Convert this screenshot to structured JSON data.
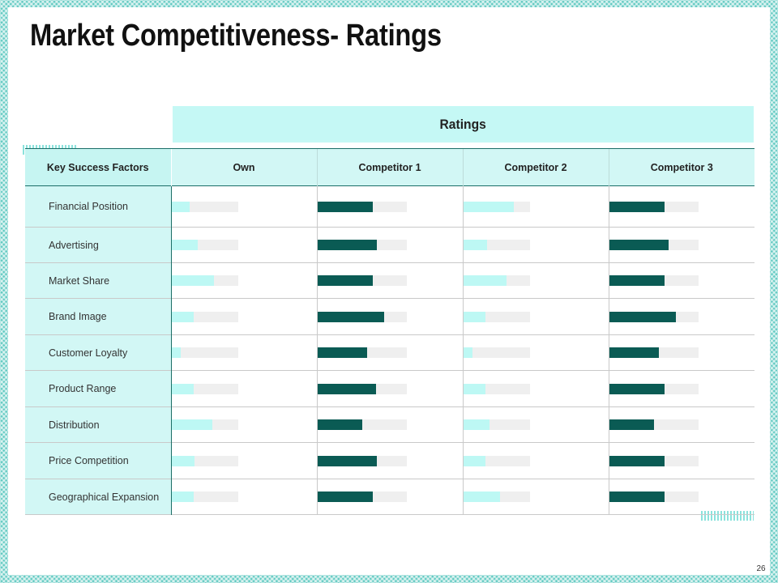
{
  "title": "Market Competitiveness- Ratings",
  "ratings_header": "Ratings",
  "columns": {
    "factor": "Key Success Factors",
    "own": "Own",
    "competitor1": "Competitor 1",
    "competitor2": "Competitor 2",
    "competitor3": "Competitor 3"
  },
  "colors": {
    "light_bar": "#bdf8f4",
    "dark_bar": "#0a5b54",
    "track": "#efefef",
    "header_bg": "#c5f8f5"
  },
  "rows": [
    {
      "factor": "Financial Position",
      "own": 0.28,
      "competitor1": 0.62,
      "competitor2": 0.76,
      "competitor3": 0.62
    },
    {
      "factor": "Advertising",
      "own": 0.4,
      "competitor1": 0.67,
      "competitor2": 0.36,
      "competitor3": 0.67
    },
    {
      "factor": "Market Share",
      "own": 0.64,
      "competitor1": 0.62,
      "competitor2": 0.65,
      "competitor3": 0.62
    },
    {
      "factor": "Brand Image",
      "own": 0.34,
      "competitor1": 0.75,
      "competitor2": 0.34,
      "competitor3": 0.75
    },
    {
      "factor": "Customer Loyalty",
      "own": 0.14,
      "competitor1": 0.56,
      "competitor2": 0.14,
      "competitor3": 0.56
    },
    {
      "factor": "Product Range",
      "own": 0.33,
      "competitor1": 0.66,
      "competitor2": 0.34,
      "competitor3": 0.62
    },
    {
      "factor": "Distribution",
      "own": 0.62,
      "competitor1": 0.5,
      "competitor2": 0.4,
      "competitor3": 0.5
    },
    {
      "factor": "Price Competition",
      "own": 0.35,
      "competitor1": 0.67,
      "competitor2": 0.34,
      "competitor3": 0.62
    },
    {
      "factor": "Geographical Expansion",
      "own": 0.33,
      "competitor1": 0.62,
      "competitor2": 0.55,
      "competitor3": 0.62
    }
  ],
  "page_number": "26"
}
